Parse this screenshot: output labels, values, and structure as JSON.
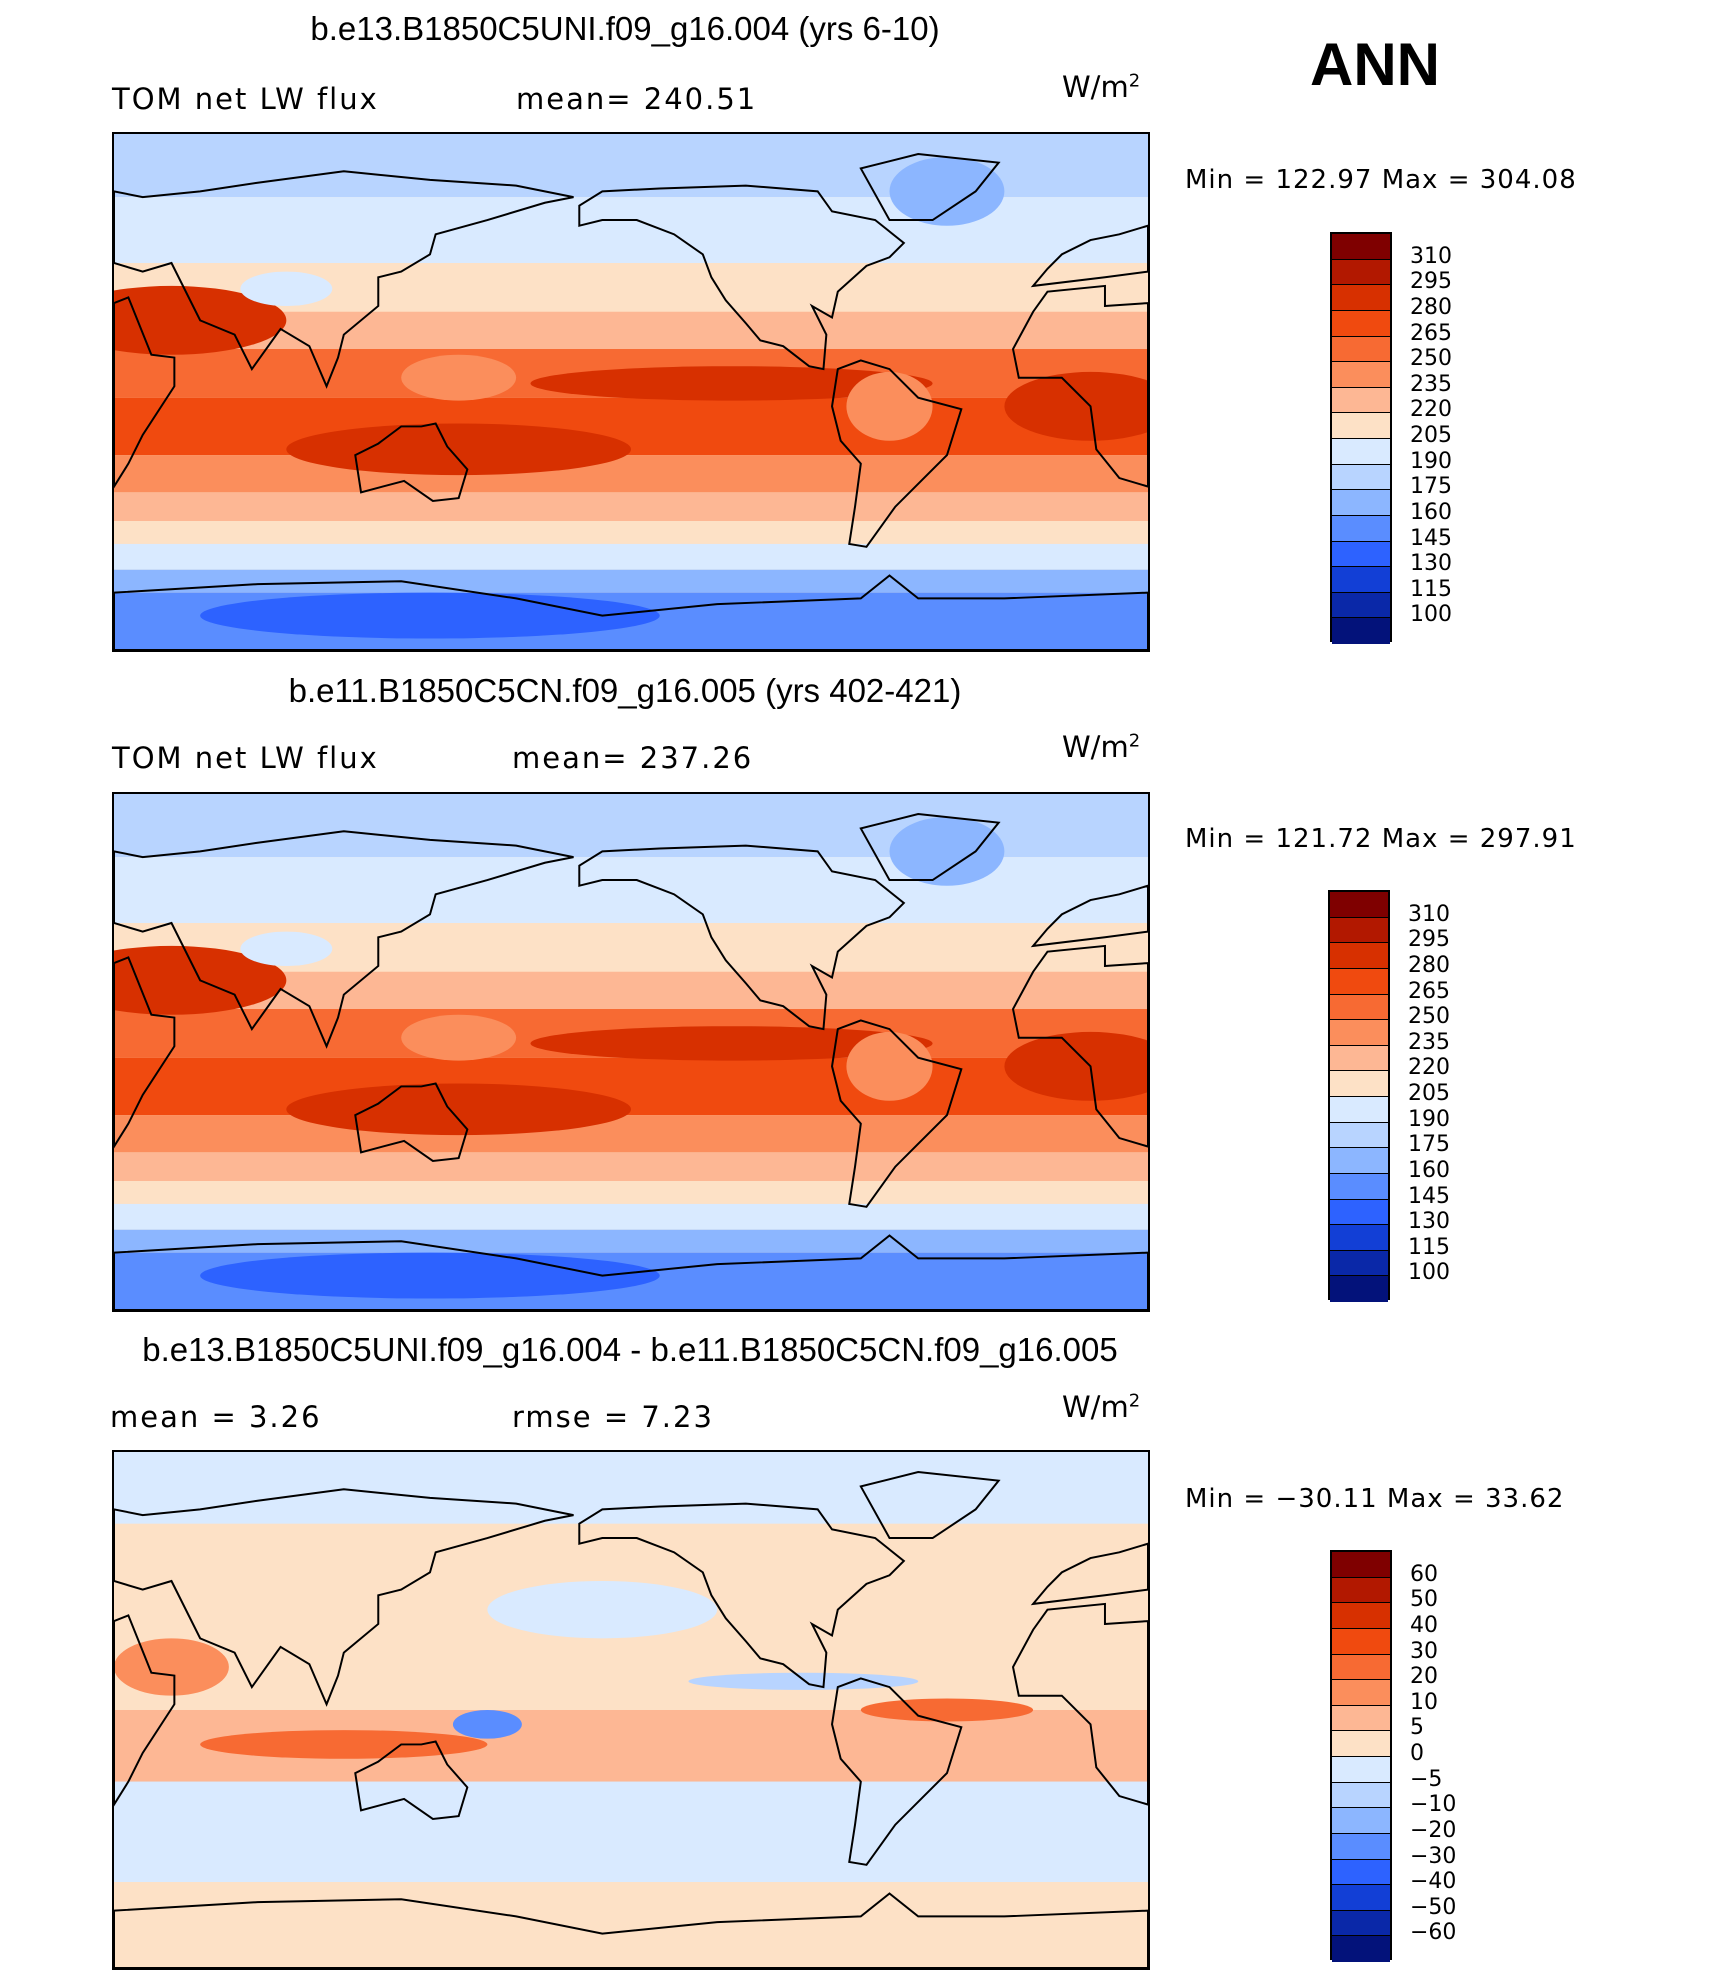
{
  "season": "ANN",
  "panels": [
    {
      "title": "b.e13.B1850C5UNI.f09_g16.004 (yrs 6-10)",
      "left_label": "TOM  net  LW  flux",
      "center_label": "mean=  240.51",
      "units_base": "W/m",
      "units_exp": "2",
      "minmax": "Min  =  122.97  Max  =  304.08",
      "kind": "abs",
      "legend_labels": [
        "310",
        "295",
        "280",
        "265",
        "250",
        "235",
        "220",
        "205",
        "190",
        "175",
        "160",
        "145",
        "130",
        "115",
        "100"
      ]
    },
    {
      "title": "b.e11.B1850C5CN.f09_g16.005 (yrs 402-421)",
      "left_label": "TOM  net  LW  flux",
      "center_label": "mean=  237.26",
      "units_base": "W/m",
      "units_exp": "2",
      "minmax": "Min  =  121.72  Max  =  297.91",
      "kind": "abs",
      "legend_labels": [
        "310",
        "295",
        "280",
        "265",
        "250",
        "235",
        "220",
        "205",
        "190",
        "175",
        "160",
        "145",
        "130",
        "115",
        "100"
      ]
    },
    {
      "title": "b.e13.B1850C5UNI.f09_g16.004 - b.e11.B1850C5CN.f09_g16.005",
      "left_label": "mean  =      3.26",
      "center_label": "rmse  =      7.23",
      "units_base": "W/m",
      "units_exp": "2",
      "minmax": "Min  =  −30.11  Max  =    33.62",
      "kind": "diff",
      "legend_labels": [
        "60",
        "50",
        "40",
        "30",
        "20",
        "10",
        "5",
        "0",
        "−5",
        "−10",
        "−20",
        "−30",
        "−40",
        "−50",
        "−60"
      ]
    }
  ],
  "colors": {
    "palette": [
      "#7f0000",
      "#b21800",
      "#d73000",
      "#f04a0f",
      "#f76a33",
      "#fb8e5c",
      "#fdb794",
      "#fde1c6",
      "#d9eaff",
      "#b8d4ff",
      "#8cb6ff",
      "#5a8dff",
      "#2d62ff",
      "#123fd6",
      "#0a28a8",
      "#03127a"
    ],
    "land_outline": "#000000"
  }
}
